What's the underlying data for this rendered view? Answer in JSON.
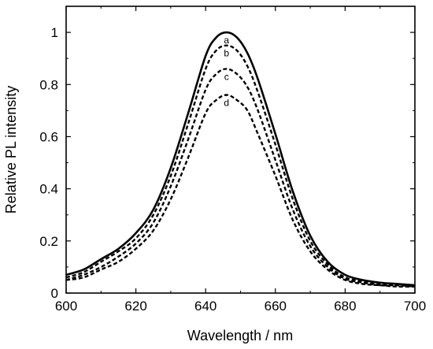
{
  "chart_data": {
    "type": "line",
    "xlabel": "Wavelength / nm",
    "ylabel": "Relative PL intensity",
    "xlim": [
      600,
      700
    ],
    "ylim": [
      0,
      1.1
    ],
    "xticks": [
      600,
      620,
      640,
      660,
      680,
      700
    ],
    "xtick_labels": [
      "600",
      "620",
      "640",
      "660",
      "680",
      "700"
    ],
    "yticks": [
      0,
      0.2,
      0.4,
      0.6,
      0.8,
      1.0
    ],
    "ytick_labels": [
      "0",
      "0.2",
      "0.4",
      "0.6",
      "0.8",
      "1"
    ],
    "grid": false,
    "x": [
      600,
      605,
      610,
      615,
      620,
      625,
      630,
      635,
      640,
      643,
      646,
      649,
      652,
      655,
      660,
      665,
      670,
      675,
      680,
      685,
      690,
      695,
      700
    ],
    "series": [
      {
        "name": "a",
        "style": "solid",
        "values": [
          0.07,
          0.09,
          0.13,
          0.17,
          0.23,
          0.32,
          0.48,
          0.69,
          0.91,
          0.98,
          1.0,
          0.98,
          0.92,
          0.82,
          0.61,
          0.39,
          0.22,
          0.12,
          0.07,
          0.05,
          0.04,
          0.035,
          0.03
        ]
      },
      {
        "name": "b",
        "style": "dashed",
        "values": [
          0.06,
          0.08,
          0.12,
          0.16,
          0.21,
          0.3,
          0.45,
          0.65,
          0.86,
          0.93,
          0.95,
          0.93,
          0.87,
          0.77,
          0.57,
          0.36,
          0.2,
          0.11,
          0.06,
          0.045,
          0.035,
          0.03,
          0.03
        ]
      },
      {
        "name": "c",
        "style": "dashed",
        "values": [
          0.05,
          0.07,
          0.1,
          0.14,
          0.19,
          0.27,
          0.41,
          0.59,
          0.78,
          0.84,
          0.86,
          0.84,
          0.79,
          0.7,
          0.51,
          0.32,
          0.18,
          0.1,
          0.055,
          0.04,
          0.03,
          0.03,
          0.025
        ]
      },
      {
        "name": "d",
        "style": "dashed",
        "values": [
          0.05,
          0.06,
          0.09,
          0.12,
          0.17,
          0.24,
          0.36,
          0.52,
          0.69,
          0.74,
          0.76,
          0.74,
          0.7,
          0.61,
          0.45,
          0.28,
          0.16,
          0.09,
          0.05,
          0.035,
          0.03,
          0.025,
          0.025
        ]
      }
    ]
  }
}
